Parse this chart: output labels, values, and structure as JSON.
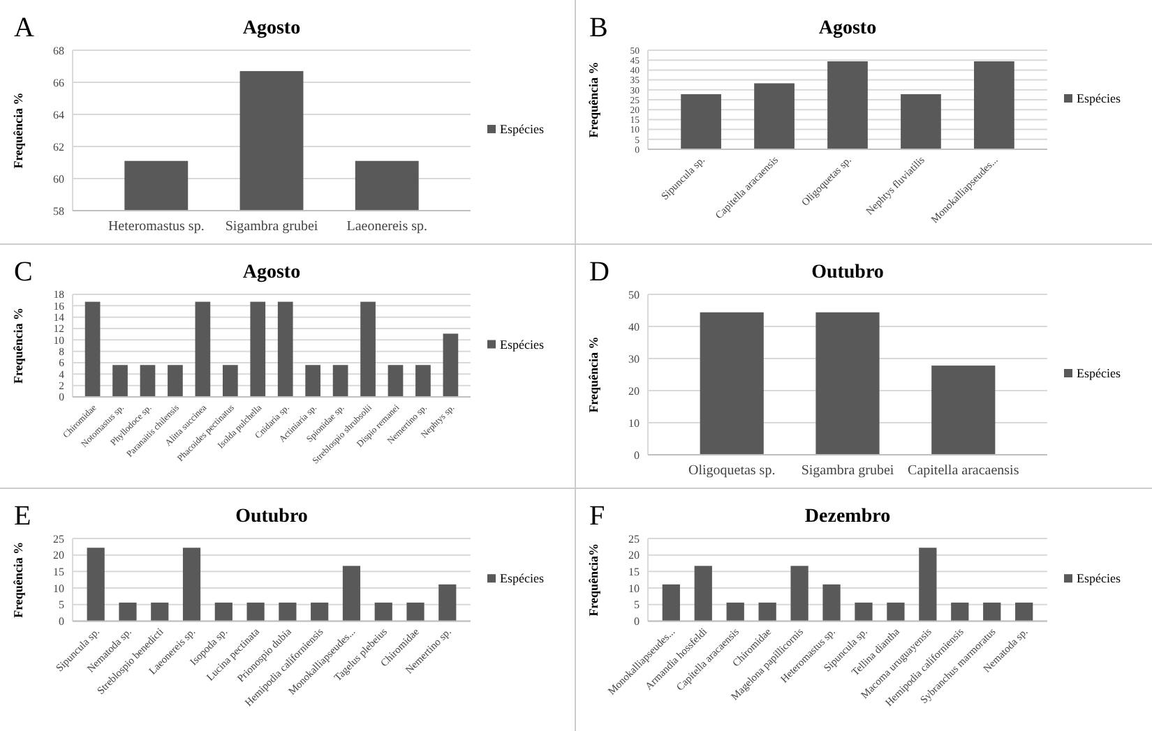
{
  "chart_data": [
    {
      "type": "bar",
      "title": "Agosto",
      "ylabel": "Frequência %",
      "annotations": [
        "A"
      ],
      "categories": [
        "Heteromastus sp.",
        "Sigambra grubei",
        "Laeonereis sp."
      ],
      "series": [
        {
          "name": "Espécies",
          "color": "#595959",
          "values": [
            61.1,
            66.7,
            61.1
          ]
        }
      ],
      "ylim": [
        58,
        68
      ],
      "yticks": [
        58,
        60,
        62,
        64,
        66,
        68
      ],
      "grid": "y",
      "legend": "right"
    },
    {
      "type": "bar",
      "title": "Agosto",
      "ylabel": "Frequência %",
      "annotations": [
        "B"
      ],
      "categories": [
        "Sipuncula sp.",
        "Capitella aracaensis",
        "Oligoquetas sp.",
        "Nephtys fluviatilis",
        "Monokalliapseudes..."
      ],
      "series": [
        {
          "name": "Espécies",
          "color": "#595959",
          "values": [
            27.8,
            33.3,
            44.4,
            27.8,
            44.4
          ]
        }
      ],
      "ylim": [
        0,
        50
      ],
      "yticks": [
        0,
        5,
        10,
        15,
        20,
        25,
        30,
        35,
        40,
        45,
        50
      ],
      "grid": "y",
      "legend": "right"
    },
    {
      "type": "bar",
      "title": "Agosto",
      "ylabel": "Frequência %",
      "annotations": [
        "C"
      ],
      "categories": [
        "Chiromidae",
        "Notomastus sp.",
        "Phyllodoce sp.",
        "Paranaitis chilensis",
        "Alitta succinea",
        "Phacoides pectinatus",
        "Isolda pulchella",
        "Cnidaria sp.",
        "Actiniaria sp.",
        "Spionidae sp.",
        "Streblospio shrubsolii",
        "Dispio remanei",
        "Nemertino sp.",
        "Nephtys sp."
      ],
      "series": [
        {
          "name": "Espécies",
          "color": "#595959",
          "values": [
            16.7,
            5.6,
            5.6,
            5.6,
            16.7,
            5.6,
            16.7,
            16.7,
            5.6,
            5.6,
            16.7,
            5.6,
            5.6,
            11.1
          ]
        }
      ],
      "ylim": [
        0,
        18
      ],
      "yticks": [
        0,
        2,
        4,
        6,
        8,
        10,
        12,
        14,
        16,
        18
      ],
      "grid": "y",
      "legend": "right"
    },
    {
      "type": "bar",
      "title": "Outubro",
      "ylabel": "Frequência %",
      "annotations": [
        "D"
      ],
      "categories": [
        "Oligoquetas sp.",
        "Sigambra grubei",
        "Capitella aracaensis"
      ],
      "series": [
        {
          "name": "Espécies",
          "color": "#595959",
          "values": [
            44.4,
            44.4,
            27.8
          ]
        }
      ],
      "ylim": [
        0,
        50
      ],
      "yticks": [
        0,
        10,
        20,
        30,
        40,
        50
      ],
      "grid": "y",
      "legend": "right"
    },
    {
      "type": "bar",
      "title": "Outubro",
      "ylabel": "Frequência %",
      "annotations": [
        "E"
      ],
      "categories": [
        "Sipuncula sp.",
        "Nematoda sp.",
        "Streblospio benedicti",
        "Laeonereis sp.",
        "Isopoda sp.",
        "Lucina pectinata",
        "Prionospio dubia",
        "Hemipodia californiensis",
        "Monokalliapseudes...",
        "Tagelus plebeius",
        "Chiromidae",
        "Nemertino sp."
      ],
      "series": [
        {
          "name": "Espécies",
          "color": "#595959",
          "values": [
            22.2,
            5.6,
            5.6,
            22.2,
            5.6,
            5.6,
            5.6,
            5.6,
            16.7,
            5.6,
            5.6,
            11.1
          ]
        }
      ],
      "ylim": [
        0,
        25
      ],
      "yticks": [
        0,
        5,
        10,
        15,
        20,
        25
      ],
      "grid": "y",
      "legend": "right"
    },
    {
      "type": "bar",
      "title": "Dezembro",
      "ylabel": "Frequência%",
      "annotations": [
        "F"
      ],
      "categories": [
        "Monokalliapseudes...",
        "Armandia hossfeldi",
        "Capitella aracaensis",
        "Chiromidae",
        "Magelona papillicornis",
        "Heteromastus sp.",
        "Sipuncula sp.",
        "Tellina diantha",
        "Macoma uruguayensis",
        "Hemipodia californiensis",
        "Sybranchus marmoratus",
        "Nematoda sp."
      ],
      "series": [
        {
          "name": "Espécies",
          "color": "#595959",
          "values": [
            11.1,
            16.7,
            5.6,
            5.6,
            16.7,
            11.1,
            5.6,
            5.6,
            22.2,
            5.6,
            5.6,
            5.6
          ]
        }
      ],
      "ylim": [
        0,
        25
      ],
      "yticks": [
        0,
        5,
        10,
        15,
        20,
        25
      ],
      "grid": "y",
      "legend": "right"
    }
  ]
}
